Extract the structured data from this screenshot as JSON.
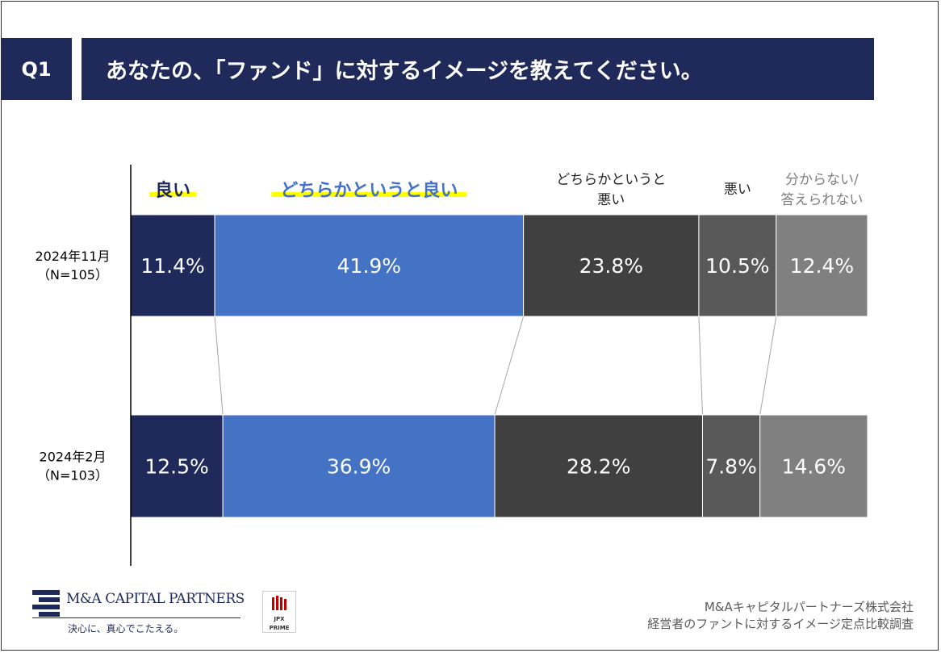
{
  "question": {
    "badge": "Q1",
    "title": "あなたの、「ファンド」に対するイメージを教えてください。"
  },
  "chart_data": {
    "type": "bar",
    "orientation": "horizontal-stacked-100",
    "categories": [
      {
        "lines": [
          "良い"
        ],
        "color": "#1f2a5a",
        "highlight": true
      },
      {
        "lines": [
          "どちらかというと良い"
        ],
        "color": "#4472c4",
        "highlight": true
      },
      {
        "lines": [
          "どちらかというと",
          "悪い"
        ],
        "color": "#404040",
        "highlight": false
      },
      {
        "lines": [
          "悪い"
        ],
        "color": "#595959",
        "highlight": false
      },
      {
        "lines": [
          "分からない/",
          "答えられない"
        ],
        "color": "#808080",
        "highlight": false
      }
    ],
    "series": [
      {
        "name": "2024年11月",
        "n_label": "（N=105）",
        "values": [
          11.4,
          41.9,
          23.8,
          10.5,
          12.4
        ],
        "labels": [
          "11.4%",
          "41.9%",
          "23.8%",
          "10.5%",
          "12.4%"
        ]
      },
      {
        "name": "2024年2月",
        "n_label": "（N=103）",
        "values": [
          12.5,
          36.9,
          28.2,
          7.8,
          14.6
        ],
        "labels": [
          "12.5%",
          "36.9%",
          "28.2%",
          "7.8%",
          "14.6%"
        ]
      }
    ],
    "highlight_color": "#ffff00",
    "xlim": [
      0,
      100
    ]
  },
  "footer": {
    "company_name": "M&A CAPITAL PARTNERS",
    "tagline": "決心に、真心でこたえる。",
    "jpx_top": "JPX",
    "jpx_bottom": "PRIME",
    "source_line1": "M&Aキャピタルパートナーズ株式会社",
    "source_line2": "経営者のファントに対するイメージ定点比較調査"
  }
}
